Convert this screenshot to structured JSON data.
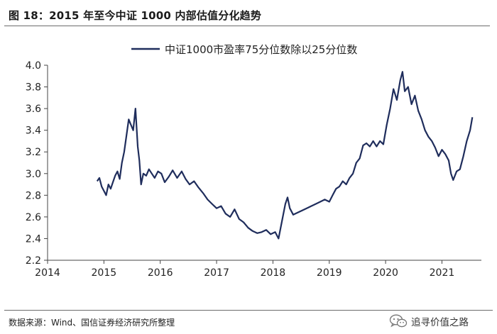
{
  "header": {
    "title": "图 18：2015 年至今中证 1000 内部估值分化趋势"
  },
  "footer": {
    "source": "数据来源：Wind、国信证券经济研究所整理"
  },
  "watermark": {
    "text": "追寻价值之路",
    "icon": "wechat-icon"
  },
  "chart_data": {
    "type": "line",
    "title": "",
    "xlabel": "",
    "ylabel": "",
    "xlim": [
      2014,
      2021.7
    ],
    "ylim": [
      2.2,
      4.0
    ],
    "x_ticks": [
      "2014",
      "2015",
      "2016",
      "2017",
      "2018",
      "2019",
      "2020",
      "2021"
    ],
    "y_ticks": [
      "2.2",
      "2.4",
      "2.6",
      "2.8",
      "3.0",
      "3.2",
      "3.4",
      "3.6",
      "3.8",
      "4.0"
    ],
    "grid": false,
    "legend": {
      "position": "top",
      "entries": [
        "中证1000市盈率75分位数除以25分位数"
      ]
    },
    "color": "#1f2d5c",
    "series": [
      {
        "name": "中证1000市盈率75分位数除以25分位数",
        "points": [
          [
            2014.88,
            2.93
          ],
          [
            2014.92,
            2.96
          ],
          [
            2014.96,
            2.88
          ],
          [
            2015.0,
            2.84
          ],
          [
            2015.04,
            2.8
          ],
          [
            2015.08,
            2.9
          ],
          [
            2015.12,
            2.86
          ],
          [
            2015.16,
            2.92
          ],
          [
            2015.2,
            2.98
          ],
          [
            2015.24,
            3.02
          ],
          [
            2015.28,
            2.95
          ],
          [
            2015.32,
            3.1
          ],
          [
            2015.36,
            3.2
          ],
          [
            2015.4,
            3.35
          ],
          [
            2015.44,
            3.5
          ],
          [
            2015.48,
            3.45
          ],
          [
            2015.52,
            3.4
          ],
          [
            2015.56,
            3.6
          ],
          [
            2015.6,
            3.25
          ],
          [
            2015.63,
            3.12
          ],
          [
            2015.66,
            2.9
          ],
          [
            2015.7,
            3.0
          ],
          [
            2015.75,
            2.98
          ],
          [
            2015.8,
            3.04
          ],
          [
            2015.85,
            3.0
          ],
          [
            2015.9,
            2.96
          ],
          [
            2015.96,
            3.02
          ],
          [
            2016.02,
            3.0
          ],
          [
            2016.08,
            2.92
          ],
          [
            2016.15,
            2.97
          ],
          [
            2016.22,
            3.03
          ],
          [
            2016.3,
            2.96
          ],
          [
            2016.38,
            3.02
          ],
          [
            2016.45,
            2.95
          ],
          [
            2016.52,
            2.9
          ],
          [
            2016.6,
            2.93
          ],
          [
            2016.68,
            2.87
          ],
          [
            2016.76,
            2.82
          ],
          [
            2016.84,
            2.76
          ],
          [
            2016.92,
            2.72
          ],
          [
            2017.0,
            2.68
          ],
          [
            2017.08,
            2.7
          ],
          [
            2017.16,
            2.63
          ],
          [
            2017.24,
            2.6
          ],
          [
            2017.32,
            2.67
          ],
          [
            2017.4,
            2.58
          ],
          [
            2017.48,
            2.55
          ],
          [
            2017.56,
            2.5
          ],
          [
            2017.64,
            2.47
          ],
          [
            2017.72,
            2.45
          ],
          [
            2017.8,
            2.46
          ],
          [
            2017.88,
            2.48
          ],
          [
            2017.96,
            2.44
          ],
          [
            2018.04,
            2.46
          ],
          [
            2018.1,
            2.4
          ],
          [
            2018.16,
            2.56
          ],
          [
            2018.22,
            2.72
          ],
          [
            2018.26,
            2.78
          ],
          [
            2018.3,
            2.68
          ],
          [
            2018.36,
            2.62
          ],
          [
            2018.44,
            2.64
          ],
          [
            2018.52,
            2.66
          ],
          [
            2018.6,
            2.68
          ],
          [
            2018.68,
            2.7
          ],
          [
            2018.76,
            2.72
          ],
          [
            2018.84,
            2.74
          ],
          [
            2018.92,
            2.76
          ],
          [
            2019.0,
            2.74
          ],
          [
            2019.06,
            2.8
          ],
          [
            2019.12,
            2.86
          ],
          [
            2019.18,
            2.88
          ],
          [
            2019.24,
            2.93
          ],
          [
            2019.3,
            2.9
          ],
          [
            2019.36,
            2.96
          ],
          [
            2019.42,
            3.0
          ],
          [
            2019.48,
            3.1
          ],
          [
            2019.54,
            3.14
          ],
          [
            2019.6,
            3.26
          ],
          [
            2019.66,
            3.28
          ],
          [
            2019.72,
            3.25
          ],
          [
            2019.78,
            3.3
          ],
          [
            2019.84,
            3.25
          ],
          [
            2019.9,
            3.3
          ],
          [
            2019.96,
            3.27
          ],
          [
            2020.02,
            3.45
          ],
          [
            2020.08,
            3.6
          ],
          [
            2020.14,
            3.78
          ],
          [
            2020.2,
            3.68
          ],
          [
            2020.26,
            3.86
          ],
          [
            2020.3,
            3.94
          ],
          [
            2020.34,
            3.76
          ],
          [
            2020.4,
            3.8
          ],
          [
            2020.46,
            3.64
          ],
          [
            2020.52,
            3.72
          ],
          [
            2020.58,
            3.58
          ],
          [
            2020.64,
            3.5
          ],
          [
            2020.7,
            3.4
          ],
          [
            2020.76,
            3.34
          ],
          [
            2020.82,
            3.3
          ],
          [
            2020.88,
            3.24
          ],
          [
            2020.94,
            3.16
          ],
          [
            2021.0,
            3.22
          ],
          [
            2021.06,
            3.18
          ],
          [
            2021.12,
            3.12
          ],
          [
            2021.16,
            3.0
          ],
          [
            2021.2,
            2.94
          ],
          [
            2021.26,
            3.02
          ],
          [
            2021.32,
            3.04
          ],
          [
            2021.38,
            3.16
          ],
          [
            2021.44,
            3.3
          ],
          [
            2021.5,
            3.4
          ],
          [
            2021.54,
            3.52
          ]
        ]
      }
    ]
  }
}
